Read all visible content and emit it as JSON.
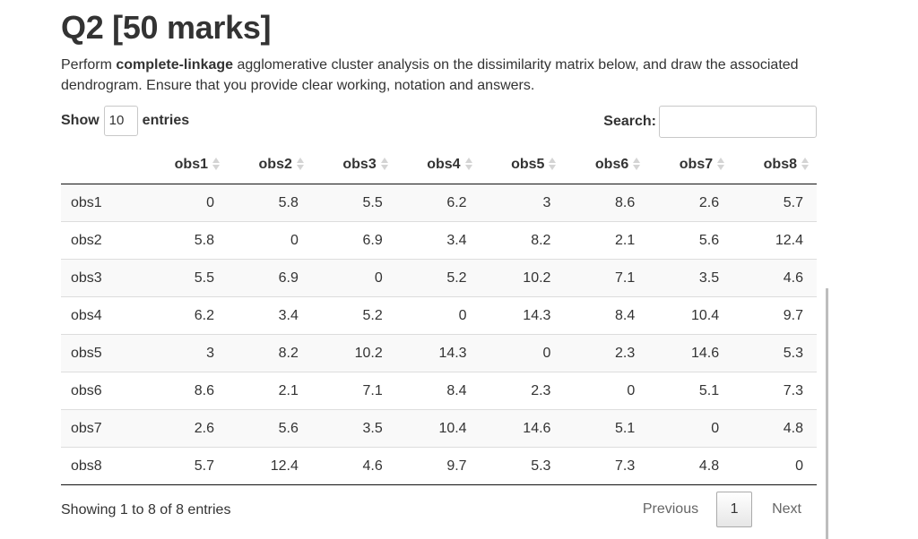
{
  "heading": "Q2 [50 marks]",
  "intro": {
    "prefix": "Perform ",
    "bold": "complete-linkage",
    "suffix": " agglomerative cluster analysis on the dissimilarity matrix below, and draw the associated dendrogram. Ensure that you provide clear working, notation and answers."
  },
  "controls": {
    "show_label": "Show",
    "entries_value": "10",
    "entries_label": "entries",
    "search_label": "Search:",
    "search_value": ""
  },
  "table": {
    "columns": [
      "obs1",
      "obs2",
      "obs3",
      "obs4",
      "obs5",
      "obs6",
      "obs7",
      "obs8"
    ],
    "rows": [
      {
        "name": "obs1",
        "values": [
          "0",
          "5.8",
          "5.5",
          "6.2",
          "3",
          "8.6",
          "2.6",
          "5.7"
        ]
      },
      {
        "name": "obs2",
        "values": [
          "5.8",
          "0",
          "6.9",
          "3.4",
          "8.2",
          "2.1",
          "5.6",
          "12.4"
        ]
      },
      {
        "name": "obs3",
        "values": [
          "5.5",
          "6.9",
          "0",
          "5.2",
          "10.2",
          "7.1",
          "3.5",
          "4.6"
        ]
      },
      {
        "name": "obs4",
        "values": [
          "6.2",
          "3.4",
          "5.2",
          "0",
          "14.3",
          "8.4",
          "10.4",
          "9.7"
        ]
      },
      {
        "name": "obs5",
        "values": [
          "3",
          "8.2",
          "10.2",
          "14.3",
          "0",
          "2.3",
          "14.6",
          "5.3"
        ]
      },
      {
        "name": "obs6",
        "values": [
          "8.6",
          "2.1",
          "7.1",
          "8.4",
          "2.3",
          "0",
          "5.1",
          "7.3"
        ]
      },
      {
        "name": "obs7",
        "values": [
          "2.6",
          "5.6",
          "3.5",
          "10.4",
          "14.6",
          "5.1",
          "0",
          "4.8"
        ]
      },
      {
        "name": "obs8",
        "values": [
          "5.7",
          "12.4",
          "4.6",
          "9.7",
          "5.3",
          "7.3",
          "4.8",
          "0"
        ]
      }
    ]
  },
  "footer": {
    "info": "Showing 1 to 8 of 8 entries",
    "previous": "Previous",
    "page": "1",
    "next": "Next"
  }
}
